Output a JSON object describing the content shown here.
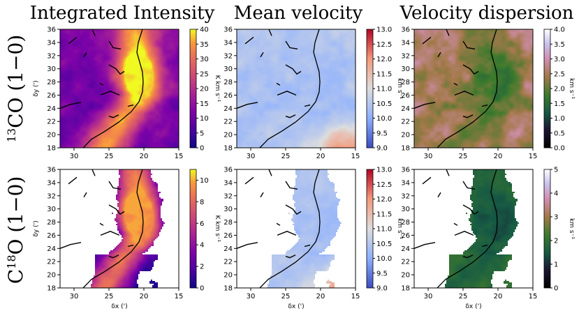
{
  "column_titles": [
    "Integrated Intensity",
    "Mean velocity",
    "Velocity dispersion"
  ],
  "row_labels": [
    {
      "sup": "13",
      "rest": "CO (1−0)"
    },
    {
      "sup": "",
      "rest": "C",
      "sup2": "18",
      "rest2": "O (1−0)"
    }
  ],
  "axes": {
    "xlabel": "δx (')",
    "ylabel": "δy (')",
    "xlim": [
      32,
      15
    ],
    "ylim": [
      18,
      36
    ],
    "xticks": [
      30,
      25,
      20,
      15
    ],
    "yticks": [
      18,
      20,
      22,
      24,
      26,
      28,
      30,
      32,
      34,
      36
    ]
  },
  "chart_data": [
    {
      "type": "heatmap",
      "title": "Integrated Intensity",
      "row": "13CO (1-0)",
      "colormap": "plasma",
      "colorbar_label": "K km s⁻¹",
      "clim": [
        0,
        40
      ],
      "cbar_ticks": [
        0,
        5,
        10,
        15,
        20,
        25,
        30,
        35,
        40
      ],
      "xlabel": "",
      "ylabel": "δy (')",
      "xlim": [
        32,
        15
      ],
      "ylim": [
        18,
        36
      ]
    },
    {
      "type": "heatmap",
      "title": "Mean velocity",
      "row": "13CO (1-0)",
      "colormap": "coolwarm",
      "colorbar_label": "km s⁻¹",
      "clim": [
        9.0,
        13.0
      ],
      "cbar_ticks": [
        9.0,
        9.5,
        10.0,
        10.5,
        11.0,
        11.5,
        12.0,
        12.5,
        13.0
      ],
      "xlabel": "",
      "ylabel": "",
      "xlim": [
        32,
        15
      ],
      "ylim": [
        18,
        36
      ]
    },
    {
      "type": "heatmap",
      "title": "Velocity dispersion",
      "row": "13CO (1-0)",
      "colormap": "cubehelix",
      "colorbar_label": "km s⁻¹",
      "clim": [
        0.0,
        4.0
      ],
      "cbar_ticks": [
        0.0,
        0.5,
        1.0,
        1.5,
        2.0,
        2.5,
        3.0,
        3.5,
        4.0
      ],
      "xlabel": "",
      "ylabel": "",
      "xlim": [
        32,
        15
      ],
      "ylim": [
        18,
        36
      ]
    },
    {
      "type": "heatmap",
      "title": "",
      "row": "C18O (1-0)",
      "colormap": "plasma",
      "colorbar_label": "K km s⁻¹",
      "clim": [
        0,
        11
      ],
      "cbar_ticks": [
        0,
        2,
        4,
        6,
        8,
        10
      ],
      "xlabel": "δx (')",
      "ylabel": "δy (')",
      "xlim": [
        32,
        15
      ],
      "ylim": [
        18,
        36
      ]
    },
    {
      "type": "heatmap",
      "title": "",
      "row": "C18O (1-0)",
      "colormap": "coolwarm",
      "colorbar_label": "km s⁻¹",
      "clim": [
        9.0,
        13.0
      ],
      "cbar_ticks": [
        9.0,
        9.5,
        10.0,
        10.5,
        11.0,
        11.5,
        12.0,
        12.5,
        13.0
      ],
      "xlabel": "δx (')",
      "ylabel": "",
      "xlim": [
        32,
        15
      ],
      "ylim": [
        18,
        36
      ]
    },
    {
      "type": "heatmap",
      "title": "",
      "row": "C18O (1-0)",
      "colormap": "cubehelix",
      "colorbar_label": "km s⁻¹",
      "clim": [
        0,
        5
      ],
      "cbar_ticks": [
        0,
        1,
        2,
        3,
        4,
        5
      ],
      "xlabel": "δx (')",
      "ylabel": "",
      "xlim": [
        32,
        15
      ],
      "ylim": [
        18,
        36
      ]
    }
  ]
}
